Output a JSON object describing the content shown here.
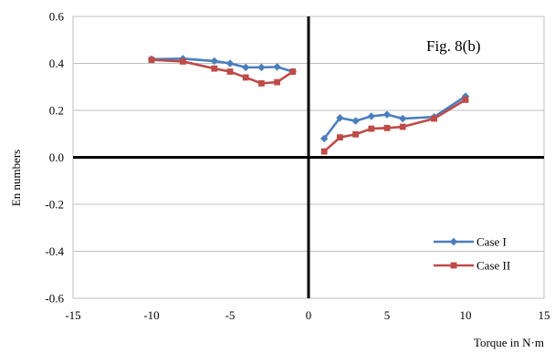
{
  "chart_data": {
    "type": "line",
    "title": "",
    "annotation": "Fig. 8(b)",
    "xlabel": "Torque in N·m",
    "ylabel": "En numbers",
    "xlim": [
      -15,
      15
    ],
    "ylim": [
      -0.6,
      0.6
    ],
    "x_ticks": [
      -15,
      -10,
      -5,
      0,
      5,
      10,
      15
    ],
    "y_ticks": [
      -0.6,
      -0.4,
      -0.2,
      0.0,
      0.2,
      0.4,
      0.6
    ],
    "x_tick_labels": [
      "-15",
      "-10",
      "-5",
      "0",
      "5",
      "10",
      "15"
    ],
    "y_tick_labels": [
      "-0.6",
      "-0.4",
      "-0.2",
      "0.0",
      "0.2",
      "0.4",
      "0.6"
    ],
    "grid": "horizontal",
    "legend_position": "bottom-right",
    "series": [
      {
        "name": "Case I",
        "color": "#4a7ebb",
        "marker": "diamond",
        "segments": [
          {
            "x": [
              -10,
              -8,
              -6,
              -5,
              -4,
              -3,
              -2,
              -1
            ],
            "y": [
              0.418,
              0.42,
              0.41,
              0.4,
              0.383,
              0.383,
              0.385,
              0.365
            ]
          },
          {
            "x": [
              1,
              2,
              3,
              4,
              5,
              6,
              8,
              10
            ],
            "y": [
              0.08,
              0.168,
              0.155,
              0.175,
              0.182,
              0.165,
              0.172,
              0.26
            ]
          }
        ]
      },
      {
        "name": "Case II",
        "color": "#be4b48",
        "marker": "square",
        "segments": [
          {
            "x": [
              -10,
              -8,
              -6,
              -5,
              -4,
              -3,
              -2,
              -1
            ],
            "y": [
              0.415,
              0.408,
              0.378,
              0.365,
              0.34,
              0.315,
              0.32,
              0.365
            ]
          },
          {
            "x": [
              1,
              2,
              3,
              4,
              5,
              6,
              8,
              10
            ],
            "y": [
              0.025,
              0.085,
              0.098,
              0.122,
              0.125,
              0.13,
              0.165,
              0.245
            ]
          }
        ]
      }
    ]
  }
}
